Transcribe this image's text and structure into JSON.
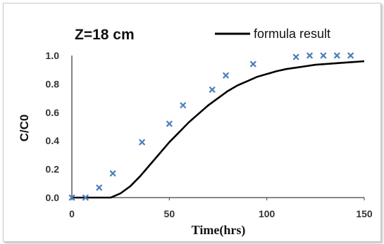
{
  "chart_data": {
    "type": "line",
    "title": "Z=18 cm",
    "xlabel": "Time(hrs)",
    "ylabel": "C/C0",
    "xlim": [
      0,
      150
    ],
    "ylim": [
      0,
      1.0
    ],
    "x_ticks": [
      "0",
      "50",
      "100",
      "150"
    ],
    "y_ticks": [
      "0.0",
      "0.2",
      "0.4",
      "0.6",
      "0.8",
      "1.0"
    ],
    "grid": false,
    "legend_position": "top-right",
    "series": [
      {
        "name": "formula result",
        "kind": "line",
        "color": "#000000",
        "x": [
          0,
          10,
          15,
          20,
          25,
          30,
          35,
          40,
          45,
          50,
          55,
          60,
          65,
          70,
          75,
          80,
          85,
          90,
          95,
          100,
          105,
          110,
          115,
          120,
          125,
          130,
          135,
          140,
          145,
          150
        ],
        "y": [
          0.0,
          0.0,
          0.0,
          0.0,
          0.03,
          0.08,
          0.15,
          0.23,
          0.31,
          0.39,
          0.46,
          0.53,
          0.59,
          0.65,
          0.7,
          0.75,
          0.79,
          0.82,
          0.85,
          0.87,
          0.89,
          0.905,
          0.915,
          0.925,
          0.935,
          0.94,
          0.945,
          0.95,
          0.955,
          0.96
        ]
      },
      {
        "kind": "scatter",
        "color": "#4a7ebb",
        "marker": "x",
        "x": [
          0,
          7,
          14,
          21,
          36,
          50,
          57,
          72,
          79,
          93,
          115,
          122,
          129,
          136,
          143
        ],
        "y": [
          0.0,
          0.0,
          0.07,
          0.17,
          0.39,
          0.52,
          0.65,
          0.76,
          0.86,
          0.94,
          0.99,
          1.0,
          1.0,
          1.0,
          1.0
        ]
      }
    ]
  }
}
